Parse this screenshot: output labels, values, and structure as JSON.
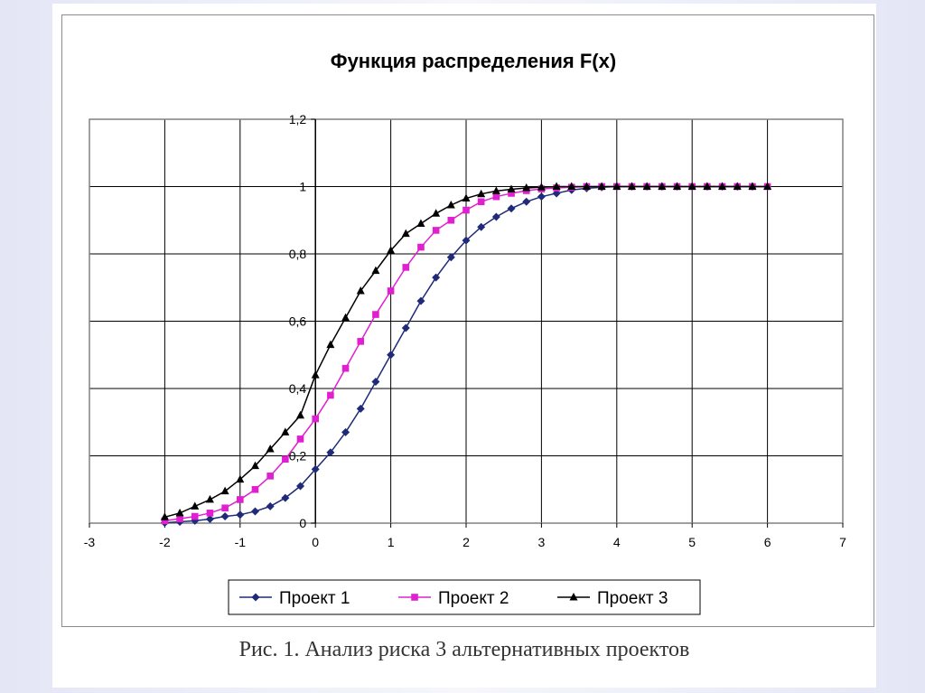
{
  "caption": "Рис. 1. Анализ риска 3 альтернативных проектов",
  "chart_data": {
    "type": "line",
    "title": "Функция распределения F(x)",
    "xlabel": "",
    "ylabel": "",
    "xlim": [
      -3,
      7
    ],
    "ylim": [
      0,
      1.2
    ],
    "x_ticks": [
      -3,
      -2,
      -1,
      0,
      1,
      2,
      3,
      4,
      5,
      6,
      7
    ],
    "x_tick_labels": [
      "-3",
      "-2",
      "-1",
      "0",
      "1",
      "2",
      "3",
      "4",
      "5",
      "6",
      "7"
    ],
    "y_ticks": [
      0,
      0.2,
      0.4,
      0.6,
      0.8,
      1,
      1.2
    ],
    "y_tick_labels": [
      "0",
      "0,2",
      "0,4",
      "0,6",
      "0,8",
      "1",
      "1,2"
    ],
    "grid": true,
    "legend_position": "bottom",
    "x": [
      -2,
      -1.8,
      -1.6,
      -1.4,
      -1.2,
      -1,
      -0.8,
      -0.6,
      -0.4,
      -0.2,
      0,
      0.2,
      0.4,
      0.6,
      0.8,
      1,
      1.2,
      1.4,
      1.6,
      1.8,
      2,
      2.2,
      2.4,
      2.6,
      2.8,
      3,
      3.2,
      3.4,
      3.6,
      3.8,
      4,
      4.2,
      4.4,
      4.6,
      4.8,
      5,
      5.2,
      5.4,
      5.6,
      5.8,
      6
    ],
    "series": [
      {
        "name": "Проект 1",
        "color": "#1f2a78",
        "marker": "diamond",
        "values": [
          0.001,
          0.004,
          0.007,
          0.012,
          0.02,
          0.025,
          0.035,
          0.05,
          0.075,
          0.11,
          0.16,
          0.21,
          0.27,
          0.34,
          0.42,
          0.5,
          0.58,
          0.66,
          0.73,
          0.79,
          0.84,
          0.88,
          0.91,
          0.935,
          0.955,
          0.97,
          0.98,
          0.99,
          0.995,
          0.998,
          1,
          1,
          1,
          1,
          1,
          1,
          1,
          1,
          1,
          1,
          1
        ]
      },
      {
        "name": "Проект 2",
        "color": "#e020d0",
        "marker": "square",
        "values": [
          0.007,
          0.013,
          0.02,
          0.03,
          0.045,
          0.07,
          0.1,
          0.14,
          0.19,
          0.25,
          0.31,
          0.38,
          0.46,
          0.54,
          0.62,
          0.69,
          0.76,
          0.82,
          0.87,
          0.9,
          0.93,
          0.955,
          0.97,
          0.98,
          0.988,
          0.993,
          0.996,
          0.998,
          1,
          1,
          1,
          1,
          1,
          1,
          1,
          1,
          1,
          1,
          1,
          1,
          1
        ]
      },
      {
        "name": "Проект 3",
        "color": "#000000",
        "marker": "triangle",
        "values": [
          0.018,
          0.03,
          0.05,
          0.07,
          0.095,
          0.13,
          0.17,
          0.22,
          0.27,
          0.32,
          0.44,
          0.53,
          0.61,
          0.69,
          0.75,
          0.81,
          0.86,
          0.89,
          0.92,
          0.945,
          0.965,
          0.978,
          0.987,
          0.992,
          0.996,
          0.998,
          1,
          1,
          1,
          1,
          1,
          1,
          1,
          1,
          1,
          1,
          1,
          1,
          1,
          1,
          1
        ]
      }
    ]
  }
}
